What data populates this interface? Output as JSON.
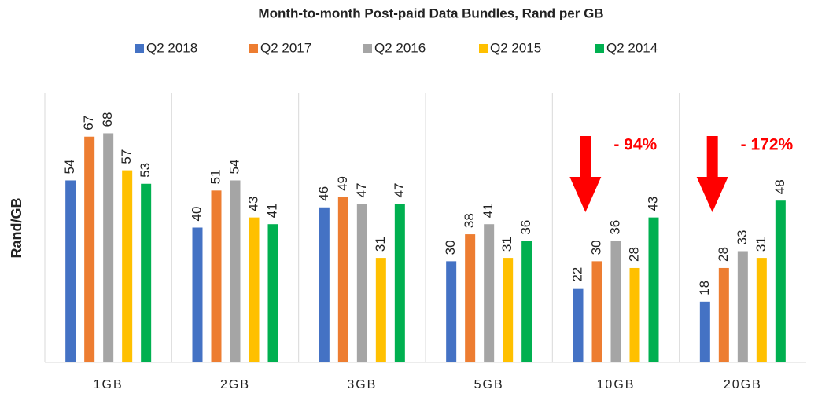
{
  "chart_data": {
    "type": "bar",
    "title": "Month-to-month Post-paid Data Bundles, Rand per GB",
    "y_label": "Rand/GB",
    "categories": [
      "1GB",
      "2GB",
      "3GB",
      "5GB",
      "10GB",
      "20GB"
    ],
    "series": [
      {
        "name": "Q2 2018",
        "color": "#4472c4",
        "values": [
          54,
          40,
          46,
          30,
          22,
          18
        ]
      },
      {
        "name": "Q2 2017",
        "color": "#ed7d31",
        "values": [
          67,
          51,
          49,
          38,
          30,
          28
        ]
      },
      {
        "name": "Q2 2016",
        "color": "#a5a5a5",
        "values": [
          68,
          54,
          47,
          41,
          36,
          33
        ]
      },
      {
        "name": "Q2 2015",
        "color": "#ffc000",
        "values": [
          57,
          43,
          31,
          31,
          28,
          31
        ]
      },
      {
        "name": "Q2 2014",
        "color": "#00b050",
        "values": [
          53,
          41,
          47,
          36,
          43,
          48
        ]
      }
    ],
    "ylim": [
      0,
      80
    ],
    "legend": "top",
    "annotations": [
      {
        "text": "- 94%",
        "category": "10GB",
        "color": "#ff0000"
      },
      {
        "text": "- 172%",
        "category": "20GB",
        "color": "#ff0000"
      }
    ]
  }
}
